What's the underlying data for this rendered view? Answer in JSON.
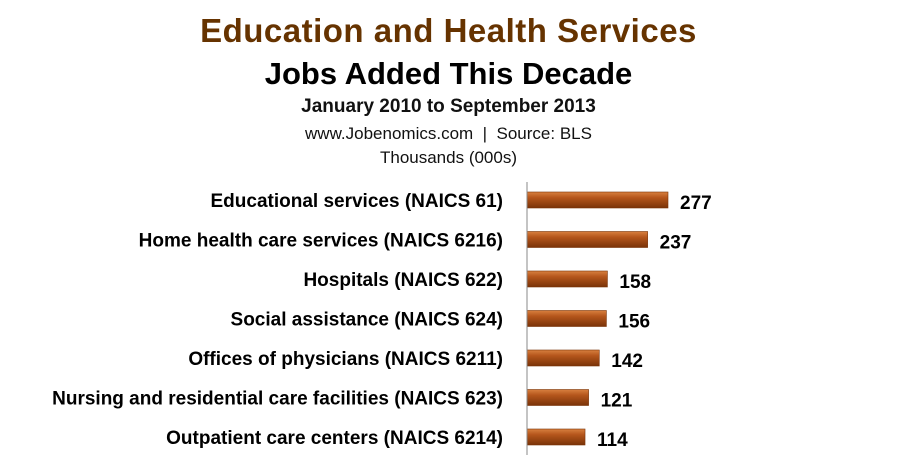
{
  "chart_data": {
    "type": "bar",
    "orientation": "horizontal",
    "title": "Education and Health Services",
    "subtitle": "Jobs Added This Decade",
    "date_range": "January  2010 to September 2013",
    "source": "www.Jobenomics.com  |  Source: BLS",
    "unit": "Thousands (000s)",
    "categories": [
      "Educational services (NAICS 61)",
      "Home health care services (NAICS 6216)",
      "Hospitals (NAICS 622)",
      "Social assistance (NAICS 624)",
      "Offices of physicians (NAICS 6211)",
      "Nursing and residential care facilities (NAICS 623)",
      "Outpatient care centers (NAICS 6214)"
    ],
    "values": [
      277,
      237,
      158,
      156,
      142,
      121,
      114
    ],
    "data_labels": true,
    "grid": false,
    "colors": {
      "title": "#663300",
      "bar": "#b5561c",
      "bar_light": "#d8803f",
      "bar_dark": "#7a3308",
      "axis": "#888888"
    }
  }
}
